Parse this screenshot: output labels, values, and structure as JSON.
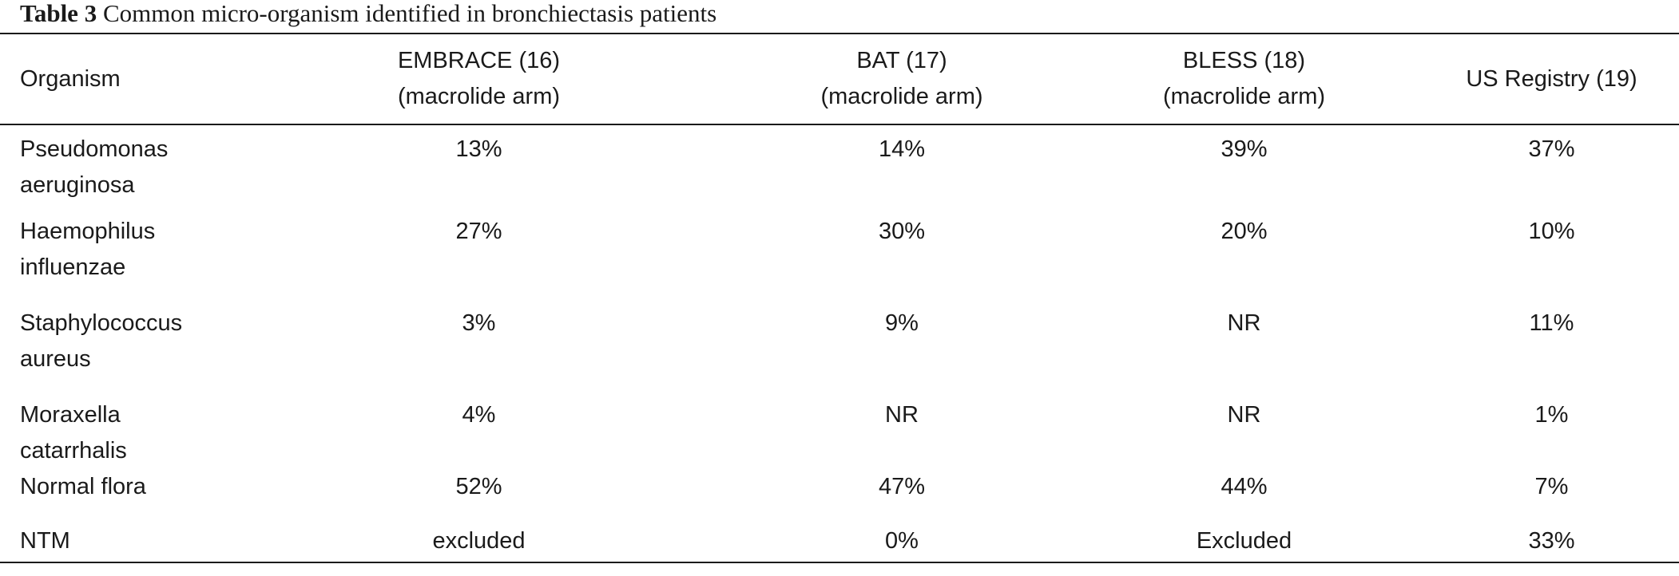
{
  "caption": {
    "label": "Table 3",
    "text": "Common micro-organism identified in bronchiectasis patients"
  },
  "table": {
    "columns": [
      {
        "lines": [
          "Organism"
        ]
      },
      {
        "lines": [
          "EMBRACE (16)",
          "(macrolide arm)"
        ]
      },
      {
        "lines": [
          "BAT (17)",
          "(macrolide arm)"
        ]
      },
      {
        "lines": [
          "BLESS (18)",
          "(macrolide arm)"
        ]
      },
      {
        "lines": [
          "US Registry (19)"
        ]
      }
    ],
    "rows": [
      {
        "organism_lines": [
          "Pseudomonas",
          "aeruginosa"
        ],
        "embrace": "13%",
        "bat": "14%",
        "bless": "39%",
        "us_registry": "37%"
      },
      {
        "organism_lines": [
          "Haemophilus",
          "influenzae"
        ],
        "embrace": "27%",
        "bat": "30%",
        "bless": "20%",
        "us_registry": "10%"
      },
      {
        "organism_lines": [
          "Staphylococcus",
          "aureus"
        ],
        "embrace": "3%",
        "bat": "9%",
        "bless": "NR",
        "us_registry": "11%"
      },
      {
        "organism_lines": [
          "Moraxella catarrhalis"
        ],
        "embrace": "4%",
        "bat": "NR",
        "bless": "NR",
        "us_registry": "1%"
      },
      {
        "organism_lines": [
          "Normal flora"
        ],
        "embrace": "52%",
        "bat": "47%",
        "bless": "44%",
        "us_registry": "7%"
      },
      {
        "organism_lines": [
          "NTM"
        ],
        "embrace": "excluded",
        "bat": "0%",
        "bless": "Excluded",
        "us_registry": "33%"
      }
    ]
  }
}
